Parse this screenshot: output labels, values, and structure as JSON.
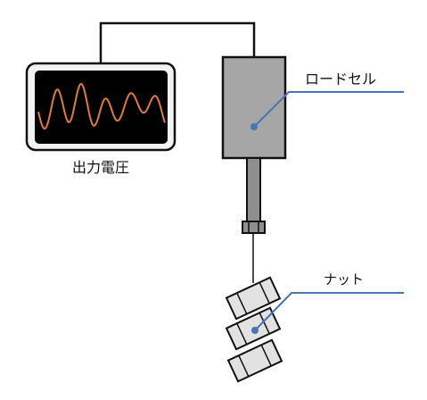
{
  "labels": {
    "output_voltage": "出力電圧",
    "load_cell": "ロードセル",
    "nut": "ナット"
  },
  "colors": {
    "outline": "#111111",
    "load_cell_body": "#a6a6a6",
    "rod": "#8f8f8f",
    "nut_fill": "#e2e2e2",
    "monitor_screen": "#000000",
    "monitor_bezel": "#f2f2f2",
    "waveform": "#e07b3f",
    "leader_line": "#4a74b8",
    "leader_dot": "#4a74b8"
  },
  "icons": {
    "monitor": "oscilloscope-monitor-icon"
  }
}
